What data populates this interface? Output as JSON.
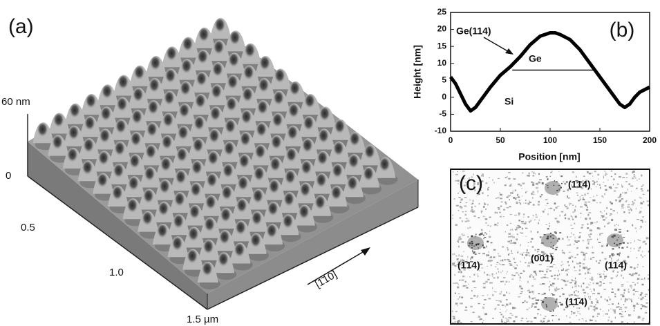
{
  "panel_a": {
    "label": "(a)",
    "z_ticks": [
      "60 nm",
      "0"
    ],
    "x_ticks": [
      "0.5",
      "1.0",
      "1.5 µm"
    ],
    "direction": "[1̄10]"
  },
  "chart_data": {
    "type": "line",
    "label": "(b)",
    "x_label": "Position [nm]",
    "y_label": "Height [nm]",
    "x": [
      0,
      5,
      10,
      15,
      20,
      25,
      30,
      40,
      50,
      60,
      70,
      80,
      90,
      100,
      105,
      110,
      120,
      130,
      140,
      150,
      160,
      165,
      170,
      175,
      180,
      185,
      190,
      200
    ],
    "values": [
      6,
      4,
      1,
      -2,
      -4,
      -3,
      -1,
      3,
      6.5,
      9,
      12,
      15.5,
      18,
      19,
      19,
      18.5,
      17,
      14,
      10,
      6,
      2,
      0,
      -2,
      -3,
      -2,
      0,
      1.5,
      3
    ],
    "color": "#000000",
    "xlim": [
      0,
      200
    ],
    "ylim": [
      -10,
      25
    ],
    "xticks": [
      0,
      50,
      100,
      150,
      200
    ],
    "yticks": [
      -10,
      -5,
      0,
      5,
      10,
      15,
      20,
      25
    ],
    "annotations": [
      "Ge(114)",
      "Ge",
      "Si"
    ],
    "interface": {
      "y": 8,
      "x": [
        62,
        145
      ]
    }
  },
  "panel_c": {
    "label": "(c)",
    "spots": [
      "(1̄14)",
      "(1̄1̄4)",
      "(001)",
      "(114)",
      "(11̄4)"
    ]
  }
}
